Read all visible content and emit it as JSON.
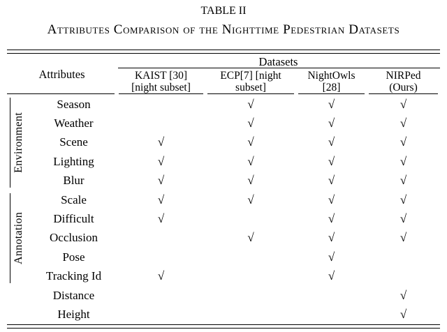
{
  "page": {
    "title": "TABLE II",
    "subtitle": "Attributes Comparison of the Nighttime Pedestrian Datasets"
  },
  "colors": {
    "ink": "#000000",
    "background": "#ffffff"
  },
  "table": {
    "corner_header": "Attributes",
    "datasets_header": "Datasets",
    "check_glyph": "√",
    "dataset_columns": [
      {
        "name": "KAIST [30] [night subset]",
        "line1": "KAIST [30]",
        "line2": "[night subset]"
      },
      {
        "name": "ECP[7] [night subset]",
        "line1": "ECP[7] [night",
        "line2": "subset]"
      },
      {
        "name": "NightOwls [28]",
        "line1": "NightOwls",
        "line2": "[28]"
      },
      {
        "name": "NIRPed (Ours)",
        "line1": "NIRPed",
        "line2": "(Ours)"
      }
    ],
    "row_groups": [
      {
        "label": "Environment",
        "rows": [
          "Season",
          "Weather",
          "Scene",
          "Lighting",
          "Blur"
        ]
      },
      {
        "label": "Annotation",
        "rows": [
          "Scale",
          "Difficult",
          "Occlusion",
          "Pose",
          "Tracking Id"
        ]
      },
      {
        "label": "",
        "rows": [
          "Distance",
          "Height"
        ]
      }
    ],
    "rows": [
      {
        "attribute": "Season",
        "group": "Environment",
        "checks": [
          false,
          true,
          true,
          true
        ]
      },
      {
        "attribute": "Weather",
        "group": "Environment",
        "checks": [
          false,
          true,
          true,
          true
        ]
      },
      {
        "attribute": "Scene",
        "group": "Environment",
        "checks": [
          true,
          true,
          true,
          true
        ]
      },
      {
        "attribute": "Lighting",
        "group": "Environment",
        "checks": [
          true,
          true,
          true,
          true
        ]
      },
      {
        "attribute": "Blur",
        "group": "Environment",
        "checks": [
          true,
          true,
          true,
          true
        ]
      },
      {
        "attribute": "Scale",
        "group": "Annotation",
        "checks": [
          true,
          true,
          true,
          true
        ]
      },
      {
        "attribute": "Difficult",
        "group": "Annotation",
        "checks": [
          true,
          false,
          true,
          true
        ]
      },
      {
        "attribute": "Occlusion",
        "group": "Annotation",
        "checks": [
          false,
          true,
          true,
          true
        ]
      },
      {
        "attribute": "Pose",
        "group": "Annotation",
        "checks": [
          false,
          false,
          true,
          false
        ]
      },
      {
        "attribute": "Tracking Id",
        "group": "Annotation",
        "checks": [
          true,
          false,
          true,
          false
        ]
      },
      {
        "attribute": "Distance",
        "group": "",
        "checks": [
          false,
          false,
          false,
          true
        ]
      },
      {
        "attribute": "Height",
        "group": "",
        "checks": [
          false,
          false,
          false,
          true
        ]
      }
    ]
  }
}
